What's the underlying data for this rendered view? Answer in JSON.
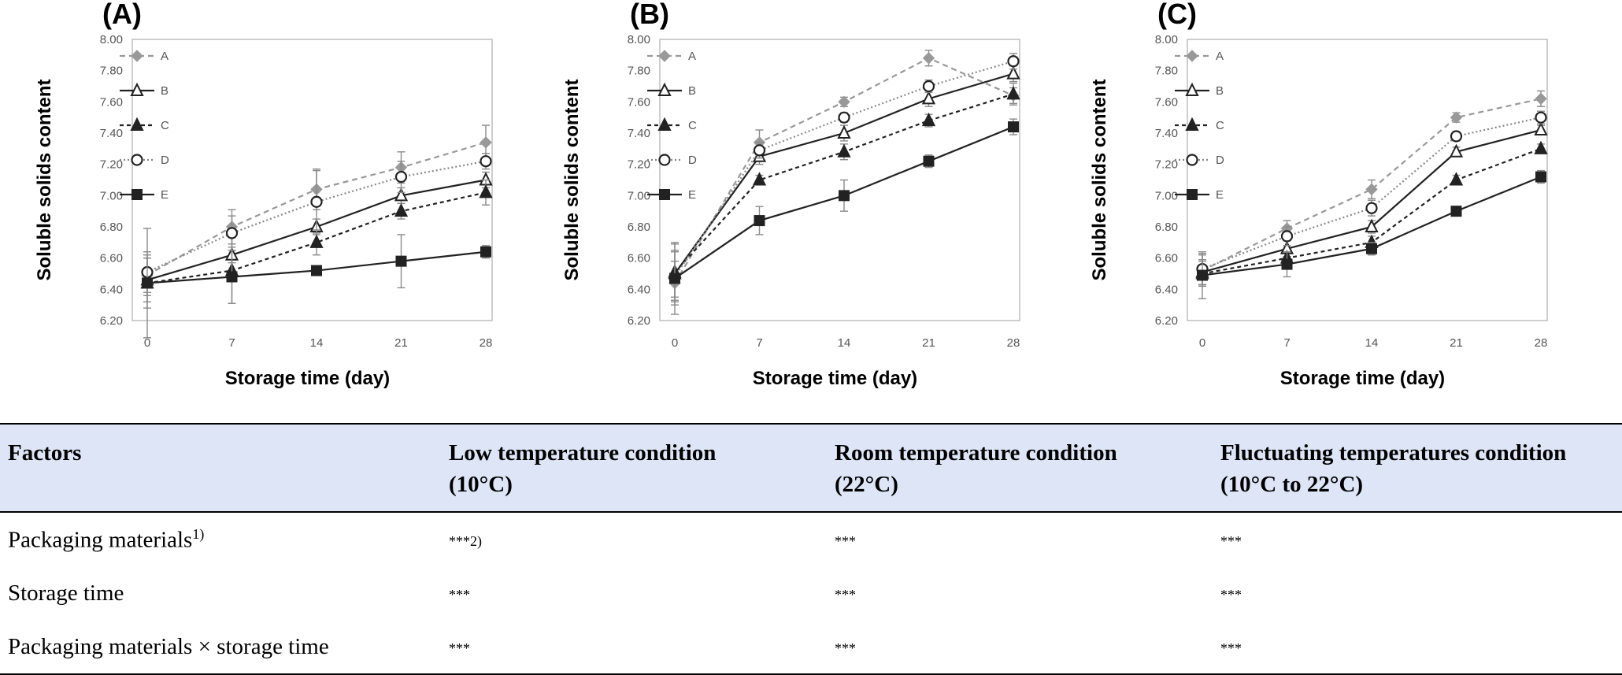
{
  "chart_data": [
    {
      "type": "line",
      "panel_label": "(A)",
      "xlabel": "Storage time (day)",
      "ylabel": "Soluble solids content",
      "x": [
        0,
        7,
        14,
        21,
        28
      ],
      "ylim": [
        6.2,
        8.0
      ],
      "yticks": [
        "6.20",
        "6.40",
        "6.60",
        "6.80",
        "7.00",
        "7.20",
        "7.40",
        "7.60",
        "7.80",
        "8.00"
      ],
      "legend_position": "top-left",
      "series": [
        {
          "name": "A",
          "values": [
            6.49,
            6.8,
            7.04,
            7.18,
            7.34
          ],
          "err": [
            0.13,
            0.11,
            0.13,
            0.1,
            0.11
          ],
          "color": "#999999",
          "marker": "diamond",
          "dash": "7,5"
        },
        {
          "name": "B",
          "values": [
            6.46,
            6.62,
            6.8,
            7.0,
            7.1
          ],
          "err": [
            0.14,
            0.05,
            0.05,
            0.05,
            0.05
          ],
          "color": "#222222",
          "marker": "triangle-open",
          "dash": ""
        },
        {
          "name": "C",
          "values": [
            6.44,
            6.52,
            6.7,
            6.9,
            7.02
          ],
          "err": [
            0.16,
            0.21,
            0.08,
            0.05,
            0.08
          ],
          "color": "#222222",
          "marker": "triangle",
          "dash": "5,4"
        },
        {
          "name": "D",
          "values": [
            6.51,
            6.76,
            6.96,
            7.12,
            7.22
          ],
          "err": [
            0.13,
            0.11,
            0.2,
            0.1,
            0.05
          ],
          "color": "#888888",
          "marker": "circle-open",
          "dash": "2,3"
        },
        {
          "name": "E",
          "values": [
            6.44,
            6.48,
            6.52,
            6.58,
            6.64
          ],
          "err": [
            0.35,
            0.17,
            0.03,
            0.17,
            0.04
          ],
          "color": "#222222",
          "marker": "square",
          "dash": ""
        }
      ]
    },
    {
      "type": "line",
      "panel_label": "(B)",
      "xlabel": "Storage time (day)",
      "ylabel": "Soluble solids content",
      "x": [
        0,
        7,
        14,
        21,
        28
      ],
      "ylim": [
        6.2,
        8.0
      ],
      "yticks": [
        "6.20",
        "6.40",
        "6.60",
        "6.80",
        "7.00",
        "7.20",
        "7.40",
        "7.60",
        "7.80",
        "8.00"
      ],
      "legend_position": "top-left",
      "series": [
        {
          "name": "A",
          "values": [
            6.44,
            7.34,
            7.6,
            7.88,
            7.64
          ],
          "err": [
            0.14,
            0.08,
            0.03,
            0.05,
            0.05
          ],
          "color": "#999999",
          "marker": "diamond",
          "dash": "7,5"
        },
        {
          "name": "B",
          "values": [
            6.5,
            7.25,
            7.4,
            7.62,
            7.78
          ],
          "err": [
            0.15,
            0.05,
            0.05,
            0.05,
            0.05
          ],
          "color": "#222222",
          "marker": "triangle-open",
          "dash": ""
        },
        {
          "name": "C",
          "values": [
            6.51,
            7.1,
            7.28,
            7.48,
            7.65
          ],
          "err": [
            0.18,
            0.03,
            0.05,
            0.04,
            0.07
          ],
          "color": "#222222",
          "marker": "triangle",
          "dash": "5,4"
        },
        {
          "name": "D",
          "values": [
            6.48,
            7.29,
            7.5,
            7.7,
            7.86
          ],
          "err": [
            0.16,
            0.05,
            0.03,
            0.04,
            0.05
          ],
          "color": "#888888",
          "marker": "circle-open",
          "dash": "2,3"
        },
        {
          "name": "E",
          "values": [
            6.47,
            6.84,
            7.0,
            7.22,
            7.44
          ],
          "err": [
            0.23,
            0.09,
            0.1,
            0.04,
            0.05
          ],
          "color": "#222222",
          "marker": "square",
          "dash": ""
        }
      ]
    },
    {
      "type": "line",
      "panel_label": "(C)",
      "xlabel": "Storage time (day)",
      "ylabel": "Soluble solids content",
      "x": [
        0,
        7,
        14,
        21,
        28
      ],
      "ylim": [
        6.2,
        8.0
      ],
      "yticks": [
        "6.20",
        "6.40",
        "6.60",
        "6.80",
        "7.00",
        "7.20",
        "7.40",
        "7.60",
        "7.80",
        "8.00"
      ],
      "legend_position": "top-left",
      "series": [
        {
          "name": "A",
          "values": [
            6.52,
            6.79,
            7.04,
            7.5,
            7.62
          ],
          "err": [
            0.1,
            0.05,
            0.06,
            0.03,
            0.05
          ],
          "color": "#999999",
          "marker": "diamond",
          "dash": "7,5"
        },
        {
          "name": "B",
          "values": [
            6.51,
            6.66,
            6.8,
            7.28,
            7.42
          ],
          "err": [
            0.08,
            0.05,
            0.04,
            0.03,
            0.03
          ],
          "color": "#222222",
          "marker": "triangle-open",
          "dash": ""
        },
        {
          "name": "C",
          "values": [
            6.5,
            6.6,
            6.7,
            7.1,
            7.3
          ],
          "err": [
            0.08,
            0.04,
            0.04,
            0.03,
            0.03
          ],
          "color": "#222222",
          "marker": "triangle",
          "dash": "5,4"
        },
        {
          "name": "D",
          "values": [
            6.53,
            6.74,
            6.92,
            7.38,
            7.5
          ],
          "err": [
            0.1,
            0.06,
            0.05,
            0.03,
            0.04
          ],
          "color": "#888888",
          "marker": "circle-open",
          "dash": "2,3"
        },
        {
          "name": "E",
          "values": [
            6.49,
            6.56,
            6.66,
            6.9,
            7.12
          ],
          "err": [
            0.15,
            0.08,
            0.04,
            0.02,
            0.04
          ],
          "color": "#222222",
          "marker": "square",
          "dash": ""
        }
      ]
    }
  ],
  "table": {
    "headers": [
      {
        "line1": "Factors",
        "line2": ""
      },
      {
        "line1": "Low temperature condition",
        "line2": "(10°C)"
      },
      {
        "line1": "Room temperature condition",
        "line2": "(22°C)"
      },
      {
        "line1": "Fluctuating temperatures condition",
        "line2": "(10°C  to  22°C)"
      }
    ],
    "rows": [
      {
        "factor": "Packaging materials",
        "factor_sup": "1)",
        "cells": [
          "***2)",
          "***",
          "***"
        ]
      },
      {
        "factor": "Storage time",
        "factor_sup": "",
        "cells": [
          "***",
          "***",
          "***"
        ]
      },
      {
        "factor": "Packaging materials × storage time",
        "factor_sup": "",
        "cells": [
          "***",
          "***",
          "***"
        ]
      }
    ]
  }
}
